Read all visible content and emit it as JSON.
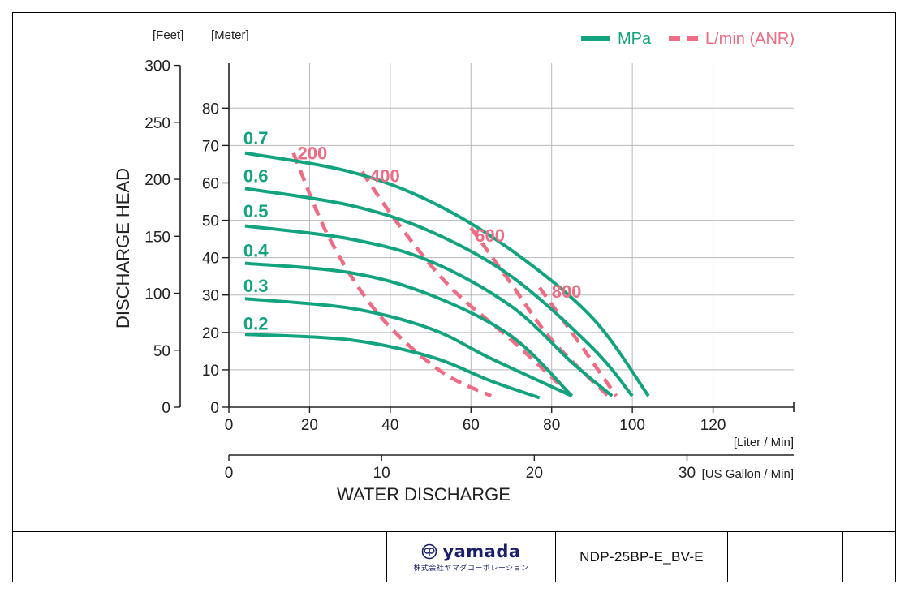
{
  "chart_data": {
    "type": "line",
    "legend": [
      {
        "label": "MPa",
        "color": "#14a37f",
        "style": "solid"
      },
      {
        "label": "L/min (ANR)",
        "color": "#ee6c84",
        "style": "dashed"
      }
    ],
    "axes": {
      "x_primary": {
        "unit_label": "[Liter / Min]",
        "range": [
          0,
          140
        ],
        "ticks": [
          0,
          20,
          40,
          60,
          80,
          100,
          120
        ]
      },
      "x_secondary": {
        "unit_label": "[US Gallon / Min]",
        "ticks": [
          0,
          10,
          20,
          30
        ]
      },
      "x_title": "WATER DISCHARGE",
      "y_title": "DISCHARGE HEAD",
      "y_meter": {
        "unit_label": "[Meter]",
        "range": [
          0,
          92
        ],
        "ticks": [
          0,
          10,
          20,
          30,
          40,
          50,
          60,
          70,
          80
        ]
      },
      "y_feet": {
        "unit_label": "[Feet]",
        "ticks": [
          0,
          50,
          100,
          150,
          200,
          250,
          300
        ]
      },
      "grid": true
    },
    "series_pressure": [
      {
        "name": "0.7",
        "points": [
          [
            4,
            68
          ],
          [
            30,
            63
          ],
          [
            50,
            55
          ],
          [
            70,
            42
          ],
          [
            90,
            24
          ],
          [
            104,
            3
          ]
        ]
      },
      {
        "name": "0.6",
        "points": [
          [
            4,
            58.5
          ],
          [
            30,
            54
          ],
          [
            50,
            47
          ],
          [
            70,
            35
          ],
          [
            90,
            16
          ],
          [
            100,
            3
          ]
        ]
      },
      {
        "name": "0.5",
        "points": [
          [
            4,
            48.5
          ],
          [
            30,
            45
          ],
          [
            50,
            39
          ],
          [
            70,
            27
          ],
          [
            85,
            12
          ],
          [
            95,
            3
          ]
        ]
      },
      {
        "name": "0.4",
        "points": [
          [
            4,
            38.5
          ],
          [
            30,
            36
          ],
          [
            50,
            30
          ],
          [
            70,
            19
          ],
          [
            85,
            3
          ]
        ]
      },
      {
        "name": "0.3",
        "points": [
          [
            4,
            29
          ],
          [
            30,
            26.5
          ],
          [
            50,
            21
          ],
          [
            65,
            13
          ],
          [
            85,
            3
          ]
        ]
      },
      {
        "name": "0.2",
        "points": [
          [
            4,
            19.5
          ],
          [
            30,
            18
          ],
          [
            50,
            13.5
          ],
          [
            65,
            7
          ],
          [
            77,
            2.5
          ]
        ]
      }
    ],
    "series_air": [
      {
        "name": "200",
        "points": [
          [
            16,
            68
          ],
          [
            25,
            45
          ],
          [
            37,
            25
          ],
          [
            52,
            10
          ],
          [
            65,
            3
          ]
        ]
      },
      {
        "name": "400",
        "points": [
          [
            33,
            63
          ],
          [
            42,
            49
          ],
          [
            55,
            32
          ],
          [
            70,
            18
          ],
          [
            85,
            3
          ]
        ]
      },
      {
        "name": "600",
        "points": [
          [
            60,
            48
          ],
          [
            70,
            33
          ],
          [
            80,
            18
          ],
          [
            94,
            3
          ]
        ]
      },
      {
        "name": "800",
        "points": [
          [
            77,
            32
          ],
          [
            85,
            20
          ],
          [
            96,
            3
          ]
        ]
      }
    ],
    "pressure_labels": [
      {
        "text": "0.7",
        "x": 4,
        "y": 72
      },
      {
        "text": "0.6",
        "x": 4,
        "y": 62
      },
      {
        "text": "0.5",
        "x": 4,
        "y": 52.5
      },
      {
        "text": "0.4",
        "x": 4,
        "y": 42
      },
      {
        "text": "0.3",
        "x": 4,
        "y": 32.5
      },
      {
        "text": "0.2",
        "x": 4,
        "y": 22.5
      }
    ],
    "air_labels": [
      {
        "text": "200",
        "x": 17,
        "y": 68
      },
      {
        "text": "400",
        "x": 35,
        "y": 62
      },
      {
        "text": "600",
        "x": 61,
        "y": 46
      },
      {
        "text": "800",
        "x": 80,
        "y": 31
      }
    ]
  },
  "title_block": {
    "logo_text": "yamada",
    "logo_subtext": "株式会社ヤマダコーポレーション",
    "model": "NDP-25BP-E_BV-E"
  }
}
